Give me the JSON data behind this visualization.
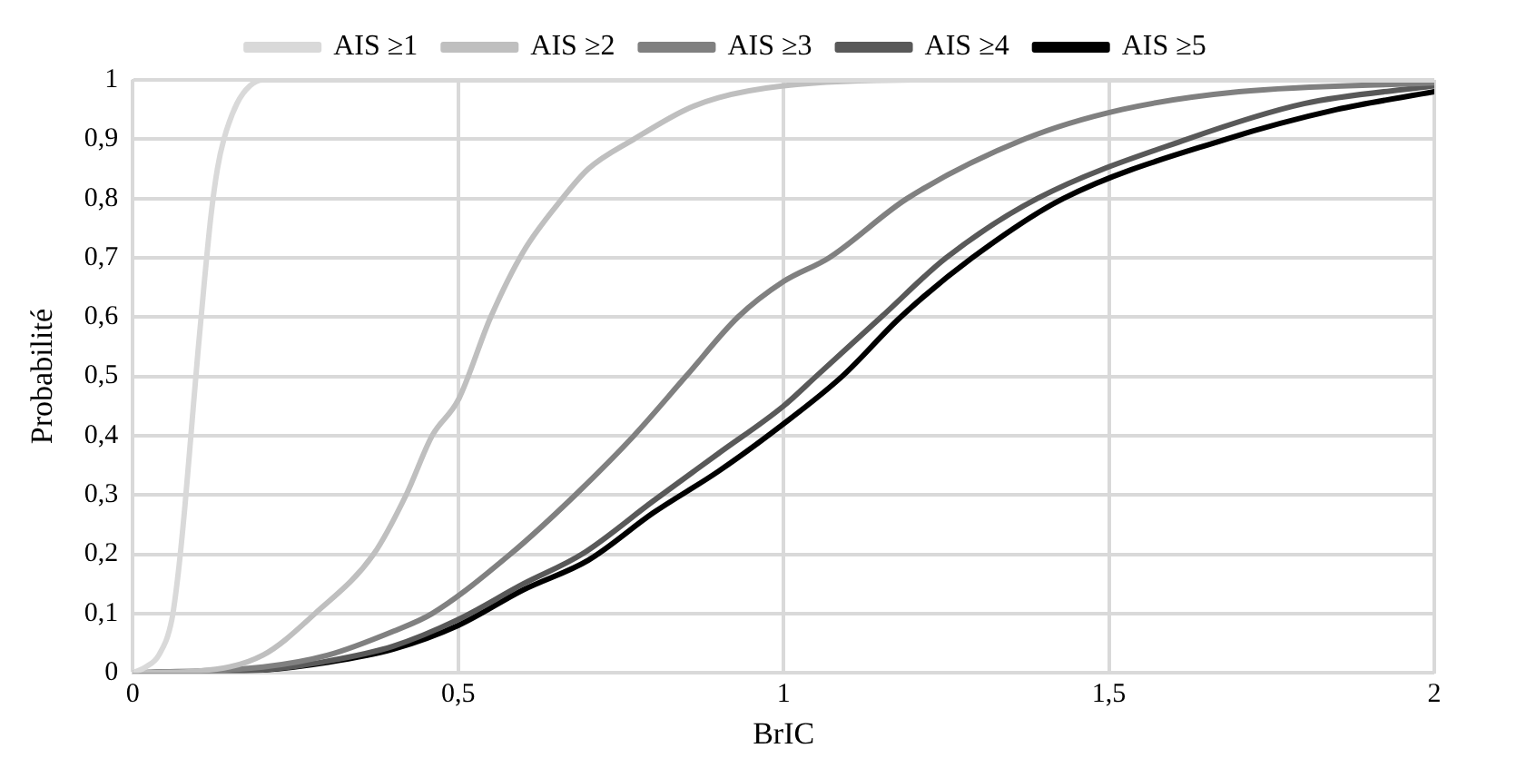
{
  "chart_data": {
    "type": "line",
    "xlabel": "BrIC",
    "ylabel": "Probabilité",
    "xlim": [
      0,
      2
    ],
    "ylim": [
      0,
      1
    ],
    "xticks": [
      0,
      {
        "value": 0.5,
        "label": "0,5"
      },
      1,
      {
        "value": 1.5,
        "label": "1,5"
      },
      2
    ],
    "yticks": [
      0,
      {
        "value": 0.1,
        "label": "0,1"
      },
      {
        "value": 0.2,
        "label": "0,2"
      },
      {
        "value": 0.3,
        "label": "0,3"
      },
      {
        "value": 0.4,
        "label": "0,4"
      },
      {
        "value": 0.5,
        "label": "0,5"
      },
      {
        "value": 0.6,
        "label": "0,6"
      },
      {
        "value": 0.7,
        "label": "0,7"
      },
      {
        "value": 0.8,
        "label": "0,8"
      },
      {
        "value": 0.9,
        "label": "0,9"
      },
      1
    ],
    "grid": true,
    "legend": "top",
    "marker": "none",
    "line_style": "solid",
    "series": [
      {
        "name": "AIS ≥1",
        "color": "#d9d9d9",
        "x": [
          0,
          0.02,
          0.04,
          0.06,
          0.07,
          0.08,
          0.09,
          0.1,
          0.11,
          0.12,
          0.13,
          0.14,
          0.16,
          0.18,
          0.2,
          0.3,
          2
        ],
        "values": [
          0,
          0.01,
          0.03,
          0.09,
          0.17,
          0.28,
          0.41,
          0.54,
          0.66,
          0.77,
          0.85,
          0.9,
          0.96,
          0.99,
          1,
          1,
          1
        ]
      },
      {
        "name": "AIS ≥2",
        "color": "#bfbfbf",
        "x": [
          0,
          0.1,
          0.2,
          0.28,
          0.37,
          0.42,
          0.46,
          0.5,
          0.55,
          0.6,
          0.66,
          0.7,
          0.77,
          0.85,
          0.9,
          1,
          1.2,
          2
        ],
        "values": [
          0,
          0.003,
          0.03,
          0.1,
          0.2,
          0.3,
          0.4,
          0.46,
          0.6,
          0.71,
          0.8,
          0.85,
          0.9,
          0.95,
          0.97,
          0.99,
          1,
          1
        ]
      },
      {
        "name": "AIS ≥3",
        "color": "#808080",
        "x": [
          0,
          0.2,
          0.3,
          0.4,
          0.46,
          0.58,
          0.68,
          0.77,
          0.85,
          0.93,
          1,
          1.07,
          1.19,
          1.37,
          1.52,
          1.7,
          2
        ],
        "values": [
          0,
          0.01,
          0.03,
          0.07,
          0.1,
          0.2,
          0.3,
          0.4,
          0.5,
          0.6,
          0.66,
          0.7,
          0.8,
          0.9,
          0.95,
          0.98,
          0.995
        ]
      },
      {
        "name": "AIS ≥4",
        "color": "#595959",
        "x": [
          0,
          0.2,
          0.3,
          0.4,
          0.5,
          0.6,
          0.69,
          0.8,
          0.9,
          1,
          1.05,
          1.15,
          1.25,
          1.39,
          1.62,
          1.8,
          2
        ],
        "values": [
          0,
          0.005,
          0.02,
          0.045,
          0.09,
          0.15,
          0.2,
          0.29,
          0.37,
          0.45,
          0.5,
          0.6,
          0.7,
          0.8,
          0.9,
          0.96,
          0.99
        ]
      },
      {
        "name": "AIS ≥5",
        "color": "#000000",
        "x": [
          0,
          0.2,
          0.3,
          0.4,
          0.5,
          0.6,
          0.7,
          0.8,
          0.9,
          1,
          1.09,
          1.18,
          1.29,
          1.43,
          1.68,
          1.85,
          2
        ],
        "values": [
          0,
          0.005,
          0.018,
          0.04,
          0.08,
          0.14,
          0.19,
          0.27,
          0.34,
          0.42,
          0.5,
          0.6,
          0.7,
          0.8,
          0.9,
          0.95,
          0.98
        ]
      }
    ]
  }
}
